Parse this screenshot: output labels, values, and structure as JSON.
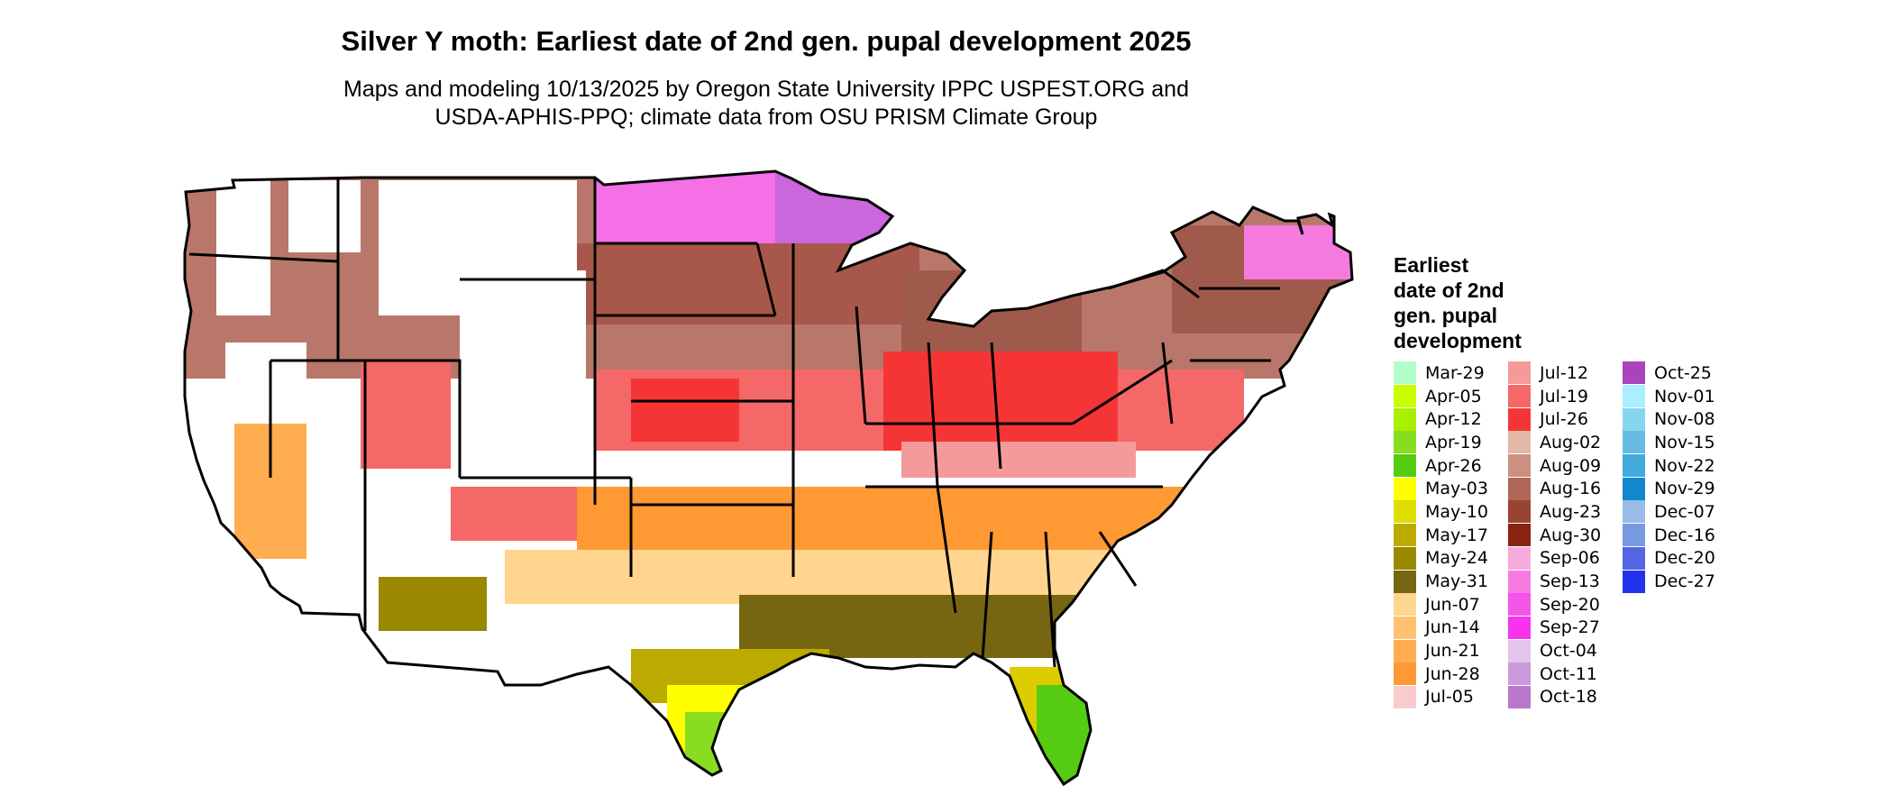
{
  "title": "Silver Y moth: Earliest date of 2nd gen. pupal development 2025",
  "subtitle": [
    "Maps and modeling 10/13/2025 by Oregon State University IPPC USPEST.ORG and",
    "USDA-APHIS-PPQ; climate data from OSU PRISM Climate Group"
  ],
  "legend": {
    "title": [
      "Earliest",
      "date of 2nd",
      "gen. pupal",
      "development"
    ],
    "columns": [
      [
        {
          "label": "Mar-29",
          "color": "#b3ffcc"
        },
        {
          "label": "Apr-05",
          "color": "#c8ff00"
        },
        {
          "label": "Apr-12",
          "color": "#aaee00"
        },
        {
          "label": "Apr-19",
          "color": "#88dd22"
        },
        {
          "label": "Apr-26",
          "color": "#55cc11"
        },
        {
          "label": "May-03",
          "color": "#ffff00"
        },
        {
          "label": "May-10",
          "color": "#dddd00"
        },
        {
          "label": "May-17",
          "color": "#bbaa00"
        },
        {
          "label": "May-24",
          "color": "#998800"
        },
        {
          "label": "May-31",
          "color": "#776611"
        },
        {
          "label": "Jun-07",
          "color": "#ffd590"
        },
        {
          "label": "Jun-14",
          "color": "#ffc070"
        },
        {
          "label": "Jun-21",
          "color": "#ffad50"
        },
        {
          "label": "Jun-28",
          "color": "#ff9933"
        },
        {
          "label": "Jul-05",
          "color": "#f8cccc"
        }
      ],
      [
        {
          "label": "Jul-12",
          "color": "#f59a9a"
        },
        {
          "label": "Jul-19",
          "color": "#f46868"
        },
        {
          "label": "Jul-26",
          "color": "#f53535"
        },
        {
          "label": "Aug-02",
          "color": "#e2b8a8"
        },
        {
          "label": "Aug-09",
          "color": "#cc8f80"
        },
        {
          "label": "Aug-16",
          "color": "#b06658"
        },
        {
          "label": "Aug-23",
          "color": "#994433"
        },
        {
          "label": "Aug-30",
          "color": "#882211"
        },
        {
          "label": "Sep-06",
          "color": "#f7aadd"
        },
        {
          "label": "Sep-13",
          "color": "#f57be0"
        },
        {
          "label": "Sep-20",
          "color": "#f555e8"
        },
        {
          "label": "Sep-27",
          "color": "#f733f0"
        },
        {
          "label": "Oct-04",
          "color": "#e3c4ea"
        },
        {
          "label": "Oct-11",
          "color": "#cc99dd"
        },
        {
          "label": "Oct-18",
          "color": "#bb77cc"
        }
      ],
      [
        {
          "label": "Oct-25",
          "color": "#aa44bb"
        },
        {
          "label": "Nov-01",
          "color": "#aaeeff"
        },
        {
          "label": "Nov-08",
          "color": "#88d5f0"
        },
        {
          "label": "Nov-15",
          "color": "#66bbe5"
        },
        {
          "label": "Nov-22",
          "color": "#44aadd"
        },
        {
          "label": "Nov-29",
          "color": "#1188cc"
        },
        {
          "label": "Dec-07",
          "color": "#99bbe5"
        },
        {
          "label": "Dec-16",
          "color": "#7799e0"
        },
        {
          "label": "Dec-20",
          "color": "#5566e5"
        },
        {
          "label": "Dec-27",
          "color": "#2233ee"
        }
      ]
    ]
  }
}
